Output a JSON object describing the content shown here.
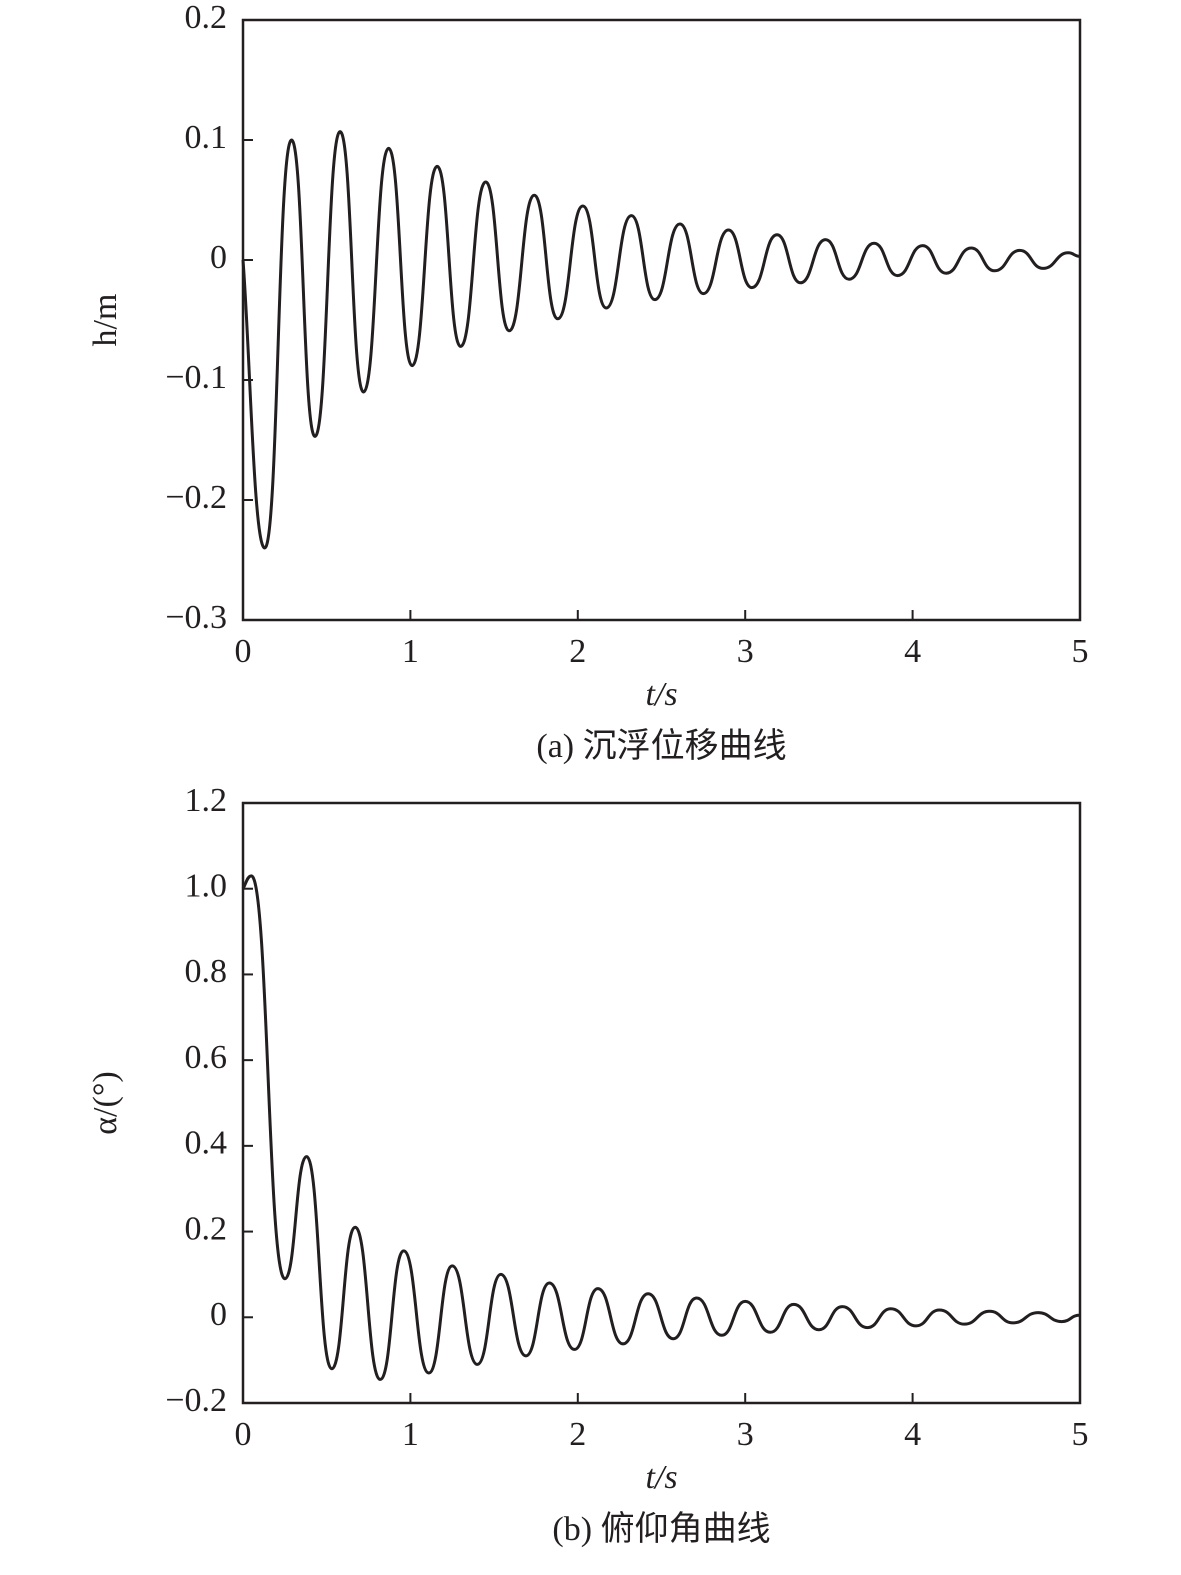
{
  "chart_data": [
    {
      "type": "line",
      "caption": "(a) 沉浮位移曲线",
      "xlabel": "t/s",
      "ylabel": "h/m",
      "color": "#231f20",
      "xlim": [
        0,
        5
      ],
      "ylim": [
        -0.3,
        0.2
      ],
      "xticks": [
        0,
        1,
        2,
        3,
        4,
        5
      ],
      "yticks": [
        {
          "value": -0.3,
          "label": "−0.3"
        },
        {
          "value": -0.2,
          "label": "−0.2"
        },
        {
          "value": -0.1,
          "label": "−0.1"
        },
        0,
        0.1,
        0.2
      ],
      "x": [
        0,
        0.13,
        0.29,
        0.43,
        0.58,
        0.72,
        0.87,
        1.01,
        1.16,
        1.3,
        1.45,
        1.59,
        1.74,
        1.88,
        2.03,
        2.17,
        2.32,
        2.46,
        2.61,
        2.75,
        2.9,
        3.04,
        3.19,
        3.33,
        3.48,
        3.62,
        3.77,
        3.91,
        4.06,
        4.2,
        4.35,
        4.49,
        4.64,
        4.78,
        4.93,
        5
      ],
      "values": [
        0,
        -0.24,
        0.1,
        -0.147,
        0.107,
        -0.11,
        0.093,
        -0.088,
        0.078,
        -0.072,
        0.065,
        -0.059,
        0.054,
        -0.049,
        0.045,
        -0.04,
        0.037,
        -0.033,
        0.03,
        -0.028,
        0.025,
        -0.023,
        0.021,
        -0.019,
        0.017,
        -0.016,
        0.014,
        -0.013,
        0.012,
        -0.011,
        0.01,
        -0.009,
        0.008,
        -0.007,
        0.006,
        0.003
      ]
    },
    {
      "type": "line",
      "caption": "(b) 俯仰角曲线",
      "xlabel": "t/s",
      "ylabel": "α/(°)",
      "color": "#231f20",
      "xlim": [
        0,
        5
      ],
      "ylim": [
        -0.2,
        1.2
      ],
      "xticks": [
        0,
        1,
        2,
        3,
        4,
        5
      ],
      "yticks": [
        {
          "value": -0.2,
          "label": "−0.2"
        },
        0,
        0.2,
        0.4,
        0.6,
        0.8,
        {
          "value": 1.0,
          "label": "1.0"
        },
        1.2
      ],
      "x": [
        0,
        0.05,
        0.25,
        0.38,
        0.53,
        0.67,
        0.82,
        0.96,
        1.11,
        1.25,
        1.4,
        1.54,
        1.69,
        1.83,
        1.98,
        2.12,
        2.27,
        2.42,
        2.57,
        2.71,
        2.86,
        3.0,
        3.15,
        3.29,
        3.44,
        3.58,
        3.73,
        3.87,
        4.02,
        4.16,
        4.31,
        4.46,
        4.6,
        4.75,
        4.89,
        5
      ],
      "values": [
        1.0,
        1.03,
        0.09,
        0.375,
        -0.12,
        0.21,
        -0.145,
        0.155,
        -0.13,
        0.12,
        -0.11,
        0.1,
        -0.09,
        0.08,
        -0.075,
        0.067,
        -0.062,
        0.055,
        -0.05,
        0.045,
        -0.042,
        0.037,
        -0.035,
        0.03,
        -0.029,
        0.025,
        -0.024,
        0.02,
        -0.02,
        0.017,
        -0.016,
        0.014,
        -0.013,
        0.011,
        -0.01,
        0.005
      ]
    }
  ]
}
